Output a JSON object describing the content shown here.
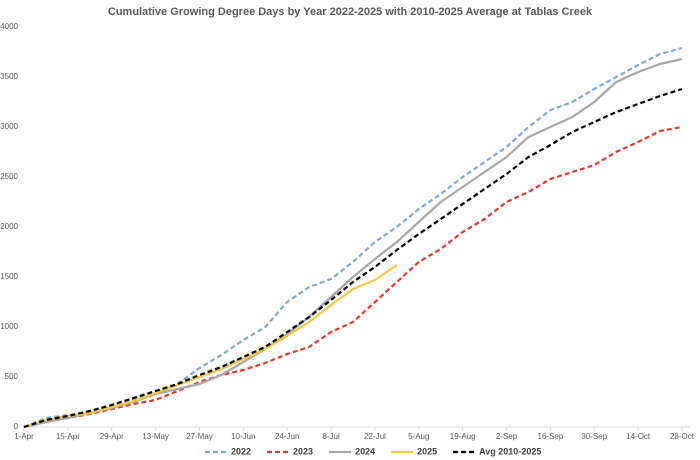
{
  "chart_data": {
    "type": "line",
    "title": "Cumulative Growing Degree Days by Year 2022-2025 with 2010-2025 Average at Tablas Creek",
    "categories": [
      "1-Apr",
      null,
      "15-Apr",
      null,
      "29-Apr",
      null,
      "13-May",
      null,
      "27-May",
      null,
      "10-Jun",
      null,
      "24-Jun",
      null,
      "8-Jul",
      null,
      "22-Jul",
      null,
      "5-Aug",
      null,
      "19-Aug",
      null,
      "2-Sep",
      null,
      "16-Sep",
      null,
      "30-Sep",
      null,
      "14-Oct",
      null,
      "28-Oct"
    ],
    "ylim": [
      0,
      4000
    ],
    "yticks": [
      0,
      500,
      1000,
      1500,
      2000,
      2500,
      3000,
      3500,
      4000
    ],
    "grid": false,
    "legend": "bottom",
    "series": [
      {
        "name": "2022",
        "color": "#7ba7d4",
        "dash": true,
        "values": [
          0,
          90,
          120,
          150,
          210,
          270,
          350,
          430,
          590,
          720,
          870,
          1000,
          1250,
          1400,
          1480,
          1650,
          1850,
          2000,
          2180,
          2330,
          2500,
          2650,
          2800,
          3000,
          3170,
          3250,
          3380,
          3500,
          3620,
          3730,
          3790
        ]
      },
      {
        "name": "2023",
        "color": "#e03a2e",
        "dash": true,
        "values": [
          0,
          60,
          90,
          130,
          180,
          230,
          270,
          360,
          450,
          520,
          570,
          640,
          730,
          800,
          950,
          1050,
          1250,
          1450,
          1650,
          1780,
          1950,
          2080,
          2250,
          2350,
          2480,
          2550,
          2620,
          2750,
          2850,
          2960,
          3000
        ]
      },
      {
        "name": "2024",
        "color": "#a6a6a6",
        "dash": false,
        "values": [
          0,
          50,
          90,
          140,
          190,
          250,
          330,
          380,
          430,
          520,
          650,
          780,
          930,
          1100,
          1300,
          1500,
          1680,
          1850,
          2050,
          2250,
          2400,
          2550,
          2700,
          2900,
          3000,
          3100,
          3250,
          3450,
          3550,
          3630,
          3680
        ]
      },
      {
        "name": "2025",
        "color": "#f5c842",
        "dash": false,
        "values": [
          0,
          70,
          110,
          140,
          200,
          260,
          340,
          420,
          500,
          580,
          680,
          780,
          910,
          1050,
          1220,
          1380,
          1470,
          1620,
          null,
          null,
          null,
          null,
          null,
          null,
          null,
          null,
          null,
          null,
          null,
          null,
          null
        ]
      },
      {
        "name": "Avg 2010-2025",
        "color": "#000000",
        "dash": true,
        "values": [
          0,
          70,
          110,
          160,
          220,
          290,
          360,
          430,
          520,
          600,
          700,
          800,
          950,
          1100,
          1270,
          1450,
          1600,
          1770,
          1930,
          2080,
          2230,
          2380,
          2530,
          2700,
          2820,
          2950,
          3050,
          3150,
          3230,
          3310,
          3380
        ]
      }
    ]
  }
}
